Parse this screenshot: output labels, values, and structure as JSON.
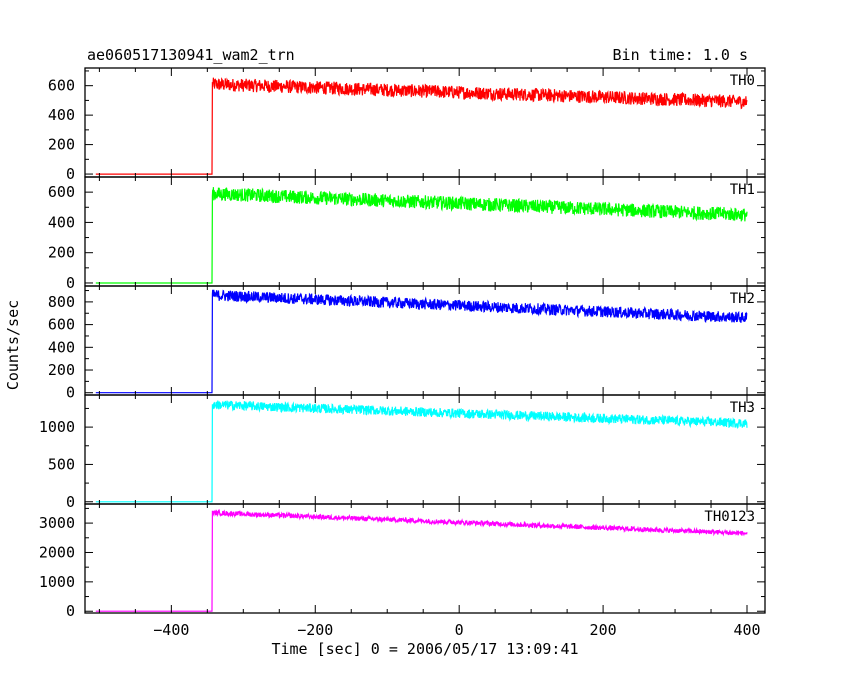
{
  "chart_data": {
    "type": "line",
    "title": "ae060517130941_wam2_trn",
    "bin_time_label": "Bin time: 1.0 s",
    "xlabel": "Time [sec] 0 = 2006/05/17 13:09:41",
    "ylabel": "Counts/sec",
    "xlim": [
      -520,
      425
    ],
    "x_ticks": [
      -400,
      -200,
      0,
      200,
      400
    ],
    "x_tick_labels": [
      "−400",
      "−200",
      "0",
      "200",
      "400"
    ],
    "onset_x": -343,
    "x_start": -505,
    "x_end": 400,
    "panels": [
      {
        "name": "TH0",
        "color": "#ff0000",
        "ylim": [
          -20,
          720
        ],
        "y_ticks": [
          0,
          200,
          400,
          600
        ],
        "y_tick_labels": [
          "0",
          "200",
          "400",
          "600"
        ],
        "baseline": 0,
        "level_at_onset": 610,
        "level_at_end": 490,
        "noise": 50
      },
      {
        "name": "TH1",
        "color": "#00ff00",
        "ylim": [
          -20,
          700
        ],
        "y_ticks": [
          0,
          200,
          400,
          600
        ],
        "y_tick_labels": [
          "0",
          "200",
          "400",
          "600"
        ],
        "baseline": 0,
        "level_at_onset": 590,
        "level_at_end": 450,
        "noise": 50
      },
      {
        "name": "TH2",
        "color": "#0000ff",
        "ylim": [
          -20,
          940
        ],
        "y_ticks": [
          0,
          200,
          400,
          600,
          800
        ],
        "y_tick_labels": [
          "0",
          "200",
          "400",
          "600",
          "800"
        ],
        "baseline": 0,
        "level_at_onset": 860,
        "level_at_end": 660,
        "noise": 55
      },
      {
        "name": "TH3",
        "color": "#00ffff",
        "ylim": [
          -30,
          1430
        ],
        "y_ticks": [
          0,
          500,
          1000
        ],
        "y_tick_labels": [
          "0",
          "500",
          "1000"
        ],
        "baseline": 0,
        "level_at_onset": 1300,
        "level_at_end": 1050,
        "noise": 70
      },
      {
        "name": "TH0123",
        "color": "#ff00ff",
        "ylim": [
          -60,
          3650
        ],
        "y_ticks": [
          0,
          1000,
          2000,
          3000
        ],
        "y_tick_labels": [
          "0",
          "1000",
          "2000",
          "3000"
        ],
        "baseline": 0,
        "level_at_onset": 3350,
        "level_at_end": 2650,
        "noise": 90
      }
    ]
  }
}
